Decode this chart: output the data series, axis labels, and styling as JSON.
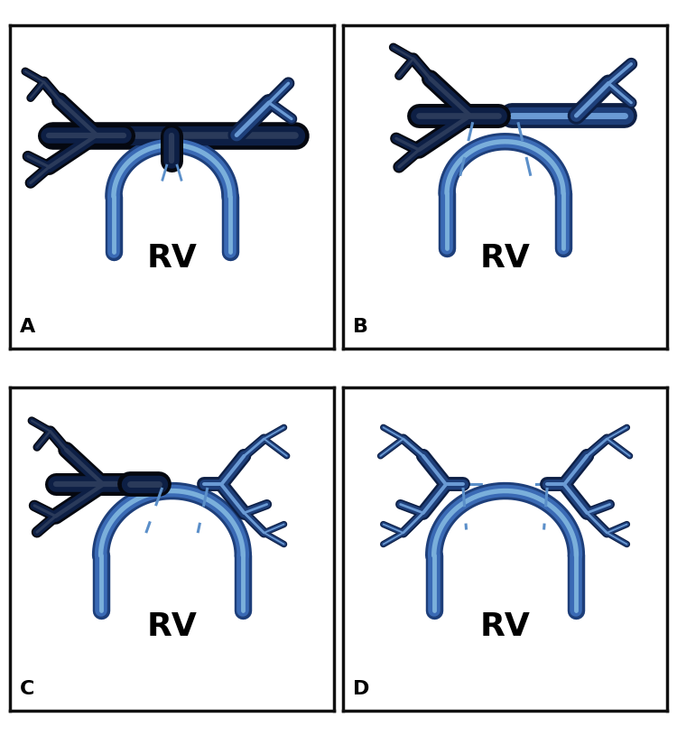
{
  "bg_color": "#ffffff",
  "border_color": "#111111",
  "artery_dark": "#0d1f45",
  "artery_mid": "#1e3f7a",
  "artery_light": "#3a6ab5",
  "artery_highlight": "#6a9ad4",
  "rv_dark": "#1e3f7a",
  "rv_mid": "#3a6ab5",
  "rv_highlight": "#7aafdb",
  "dashed_color": "#5b8fc9",
  "black_color": "#050810",
  "rv_label_color": "#000000",
  "panel_labels": [
    "A",
    "B",
    "C",
    "D"
  ],
  "rv_label": "RV",
  "panel_label_fontsize": 16,
  "rv_fontsize": 26,
  "figsize": [
    7.5,
    8.15
  ],
  "dpi": 100
}
